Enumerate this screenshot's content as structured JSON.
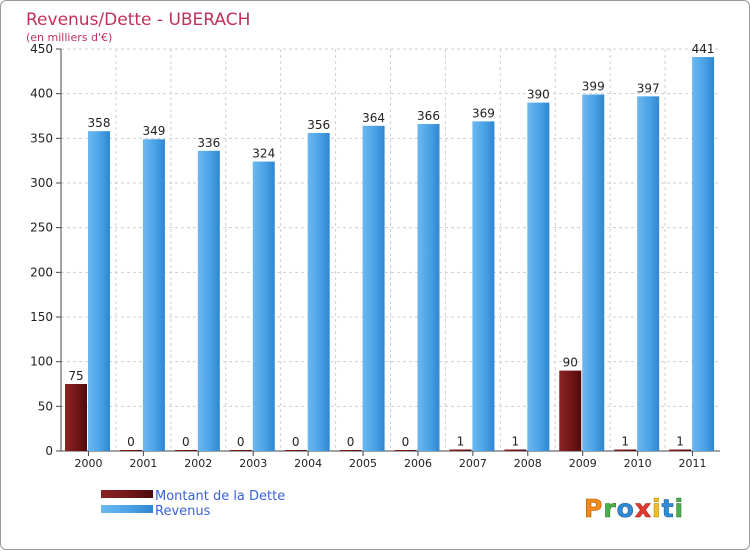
{
  "chart_data": {
    "type": "bar",
    "title": "Revenus/Dette - UBERACH",
    "subtitle": "(en milliers d'€)",
    "categories": [
      "2000",
      "2001",
      "2002",
      "2003",
      "2004",
      "2005",
      "2006",
      "2007",
      "2008",
      "2009",
      "2010",
      "2011"
    ],
    "series": [
      {
        "name": "Montant de la Dette",
        "color": "#7a1a1a",
        "values": [
          75,
          0,
          0,
          0,
          0,
          0,
          0,
          1,
          1,
          90,
          1,
          1
        ]
      },
      {
        "name": "Revenus",
        "color": "#4a9fe3",
        "values": [
          358,
          349,
          336,
          324,
          356,
          364,
          366,
          369,
          390,
          399,
          397,
          441
        ]
      }
    ],
    "ylim": [
      0,
      450
    ],
    "yticks": [
      0,
      50,
      100,
      150,
      200,
      250,
      300,
      350,
      400,
      450
    ],
    "grid": true,
    "legend": "bottom-left"
  },
  "branding": {
    "logo_text": "Proxiti",
    "title_color": "#c0305a"
  }
}
